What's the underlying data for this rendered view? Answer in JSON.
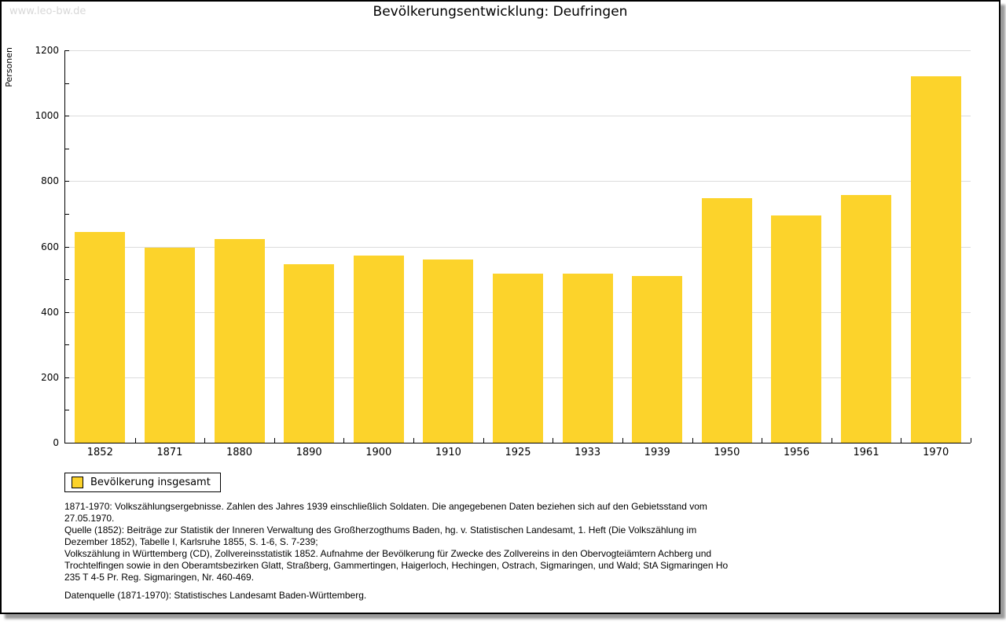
{
  "watermark": "www.leo-bw.de",
  "title": "Bevölkerungsentwicklung: Deufringen",
  "colors": {
    "bar": "#fcd32b",
    "grid": "#dcdcdc",
    "axis": "#000000",
    "watermark": "#d8d8d8",
    "frame_border": "#000000",
    "frame_shadow": "#9a9a9a"
  },
  "chart_data": {
    "type": "bar",
    "title": "Bevölkerungsentwicklung: Deufringen",
    "xlabel": "",
    "ylabel": "Personen",
    "ylim": [
      0,
      1200
    ],
    "yticks": [
      0,
      200,
      400,
      600,
      800,
      1000,
      1200
    ],
    "ytick_minor_step": 100,
    "grid": "horizontal-major-only",
    "legend_position": "bottom-left",
    "bar_color": "#fcd32b",
    "categories": [
      "1852",
      "1871",
      "1880",
      "1890",
      "1900",
      "1910",
      "1925",
      "1933",
      "1939",
      "1950",
      "1956",
      "1961",
      "1970"
    ],
    "series": [
      {
        "name": "Bevölkerung insgesamt",
        "values": [
          644,
          597,
          623,
          547,
          572,
          561,
          516,
          517,
          509,
          748,
          694,
          757,
          1120
        ]
      }
    ]
  },
  "legend": {
    "label": "Bevölkerung insgesamt"
  },
  "footnotes": [
    "1871-1970: Volkszählungsergebnisse. Zahlen des Jahres 1939 einschließlich Soldaten. Die angegebenen Daten beziehen sich auf den Gebietsstand vom 27.05.1970.",
    "Quelle (1852): Beiträge zur Statistik der Inneren Verwaltung des Großherzogthums Baden, hg. v. Statistischen Landesamt, 1. Heft (Die Volkszählung im Dezember 1852), Tabelle I, Karlsruhe 1855, S. 1-6, S. 7-239;",
    "Volkszählung in Württemberg (CD), Zollvereinsstatistik 1852. Aufnahme der Bevölkerung für Zwecke des Zollvereins in den Obervogteiämtern Achberg und Trochtelfingen sowie in den Oberamtsbezirken Glatt, Straßberg, Gammertingen, Haigerloch, Hechingen, Ostrach, Sigmaringen, und Wald; StA Sigmaringen Ho 235 T 4-5 Pr. Reg. Sigmaringen, Nr. 460-469.",
    "Datenquelle (1871-1970): Statistisches Landesamt Baden-Württemberg."
  ]
}
